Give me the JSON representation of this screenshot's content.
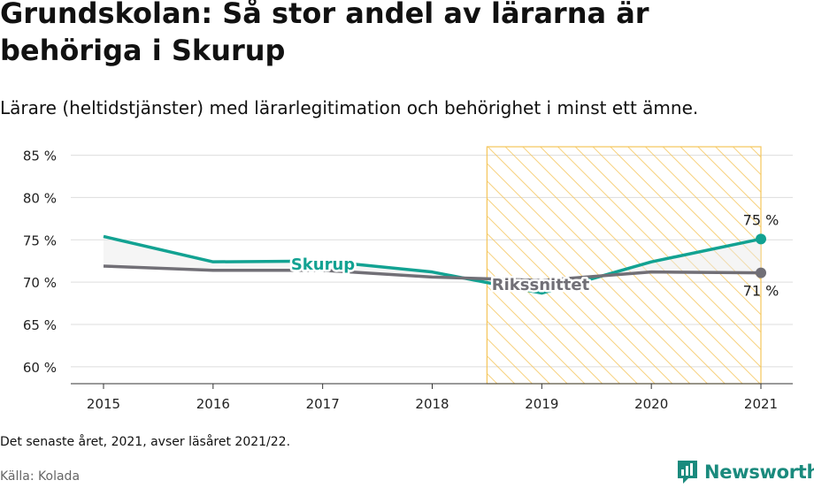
{
  "title": "Grundskolan: Så stor andel av lärarna är behöriga i Skurup",
  "subtitle": "Lärare (heltidstjänster) med lärarlegitimation och behörighet i minst ett ämne.",
  "footnote": "Det senaste året, 2021, avser läsåret 2021/22.",
  "source": "Källa: Kolada",
  "brand": "Newsworthy",
  "colors": {
    "skurup": "#12a292",
    "riksnittet": "#716f76",
    "highlight": "#f5c65b",
    "grid": "#dddddd"
  },
  "chart_data": {
    "type": "line",
    "x": [
      "2015",
      "2016",
      "2017",
      "2018",
      "2019",
      "2020",
      "2021"
    ],
    "y_ticks": [
      "85 %",
      "80 %",
      "75 %",
      "70 %",
      "65 %",
      "60 %"
    ],
    "ylim": [
      58,
      86
    ],
    "series": [
      {
        "name": "Skurup",
        "values": [
          75.4,
          72.4,
          72.5,
          71.2,
          68.7,
          72.4,
          75.1
        ]
      },
      {
        "name": "Rikssnittet",
        "values": [
          71.9,
          71.4,
          71.4,
          70.6,
          70.2,
          71.2,
          71.1
        ]
      }
    ],
    "end_labels": {
      "Skurup": "75 %",
      "Rikssnittet": "71 %"
    },
    "highlight_range": [
      2018.5,
      2021
    ]
  }
}
